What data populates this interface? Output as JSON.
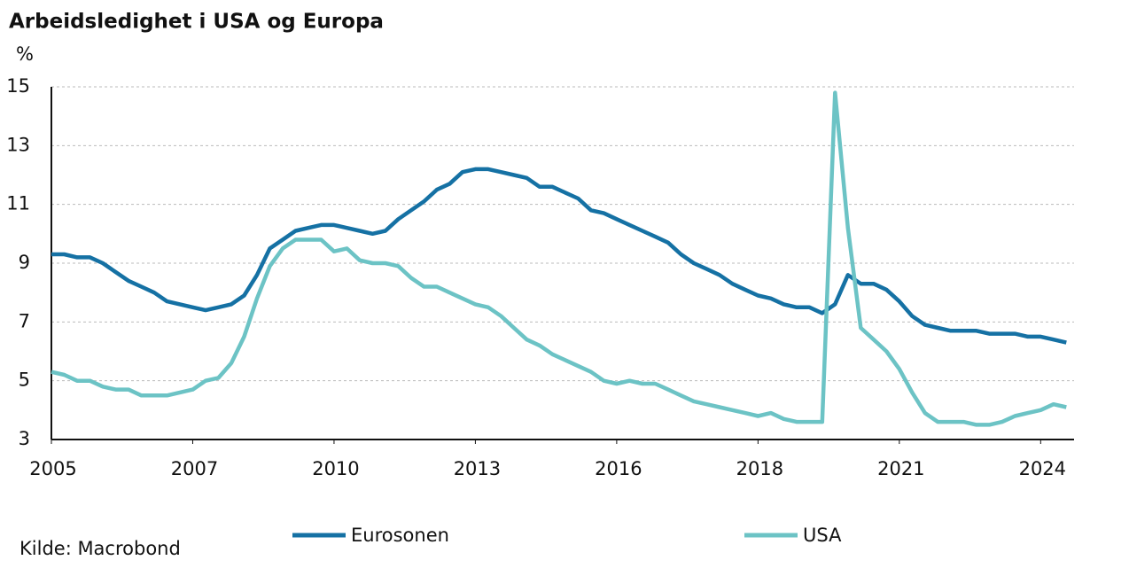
{
  "chart_data": {
    "type": "line",
    "title": "Arbeidsledighet i USA og Europa",
    "y_label": "%",
    "source": "Kilde: Macrobond",
    "x": [
      2005,
      2005.25,
      2005.5,
      2005.75,
      2006,
      2006.25,
      2006.5,
      2006.75,
      2007,
      2007.25,
      2007.5,
      2007.75,
      2008,
      2008.25,
      2008.5,
      2008.75,
      2009,
      2009.25,
      2009.5,
      2009.75,
      2010,
      2010.25,
      2010.5,
      2010.75,
      2011,
      2011.25,
      2011.5,
      2011.75,
      2012,
      2012.25,
      2012.5,
      2012.75,
      2013,
      2013.25,
      2013.5,
      2013.75,
      2014,
      2014.25,
      2014.5,
      2014.75,
      2015,
      2015.25,
      2015.5,
      2015.75,
      2016,
      2016.25,
      2016.5,
      2016.75,
      2017,
      2017.25,
      2017.5,
      2017.75,
      2018,
      2018.25,
      2018.5,
      2018.75,
      2019,
      2019.25,
      2019.5,
      2019.75,
      2020,
      2020.25,
      2020.5,
      2020.75,
      2021,
      2021.25,
      2021.5,
      2021.75,
      2022,
      2022.25,
      2022.5,
      2022.75,
      2023,
      2023.25,
      2023.5,
      2023.75,
      2024,
      2024.25,
      2024.5,
      2024.75
    ],
    "series": [
      {
        "name": "Eurosonen",
        "color": "#1571a4",
        "values": [
          9.3,
          9.3,
          9.2,
          9.2,
          9.0,
          8.7,
          8.4,
          8.2,
          8.0,
          7.7,
          7.6,
          7.5,
          7.4,
          7.5,
          7.6,
          7.9,
          8.6,
          9.5,
          9.8,
          10.1,
          10.2,
          10.3,
          10.3,
          10.2,
          10.1,
          10.0,
          10.1,
          10.5,
          10.8,
          11.1,
          11.5,
          11.7,
          12.1,
          12.2,
          12.2,
          12.1,
          12.0,
          11.9,
          11.6,
          11.6,
          11.4,
          11.2,
          10.8,
          10.7,
          10.5,
          10.3,
          10.1,
          9.9,
          9.7,
          9.3,
          9.0,
          8.8,
          8.6,
          8.3,
          8.1,
          7.9,
          7.8,
          7.6,
          7.5,
          7.5,
          7.3,
          7.6,
          8.6,
          8.3,
          8.3,
          8.1,
          7.7,
          7.2,
          6.9,
          6.8,
          6.7,
          6.7,
          6.7,
          6.6,
          6.6,
          6.6,
          6.5,
          6.5,
          6.4,
          6.3
        ]
      },
      {
        "name": "USA",
        "color": "#6cc3c5",
        "values": [
          5.3,
          5.2,
          5.0,
          5.0,
          4.8,
          4.7,
          4.7,
          4.5,
          4.5,
          4.5,
          4.6,
          4.7,
          5.0,
          5.1,
          5.6,
          6.5,
          7.8,
          8.9,
          9.5,
          9.8,
          9.8,
          9.8,
          9.4,
          9.5,
          9.1,
          9.0,
          9.0,
          8.9,
          8.5,
          8.2,
          8.2,
          8.0,
          7.8,
          7.6,
          7.5,
          7.2,
          6.8,
          6.4,
          6.2,
          5.9,
          5.7,
          5.5,
          5.3,
          5.0,
          4.9,
          5.0,
          4.9,
          4.9,
          4.7,
          4.5,
          4.3,
          4.2,
          4.1,
          4.0,
          3.9,
          3.8,
          3.9,
          3.7,
          3.6,
          3.6,
          3.6,
          14.8,
          10.2,
          6.8,
          6.4,
          6.0,
          5.4,
          4.6,
          3.9,
          3.6,
          3.6,
          3.6,
          3.5,
          3.5,
          3.6,
          3.8,
          3.9,
          4.0,
          4.2,
          4.1
        ]
      }
    ],
    "xlim": [
      2005,
      2024.9
    ],
    "xticks": [
      2005,
      {
        "value": 2007.75,
        "label": "2007"
      },
      {
        "value": 2010.5,
        "label": "2010"
      },
      {
        "value": 2013.25,
        "label": "2013"
      },
      2016,
      {
        "value": 2018.75,
        "label": "2018"
      },
      {
        "value": 2021.5,
        "label": "2021"
      },
      {
        "value": 2024.25,
        "label": "2024"
      }
    ],
    "ylim": [
      3,
      15
    ],
    "yticks": [
      3,
      5,
      7,
      9,
      11,
      13,
      15
    ],
    "grid": true
  }
}
